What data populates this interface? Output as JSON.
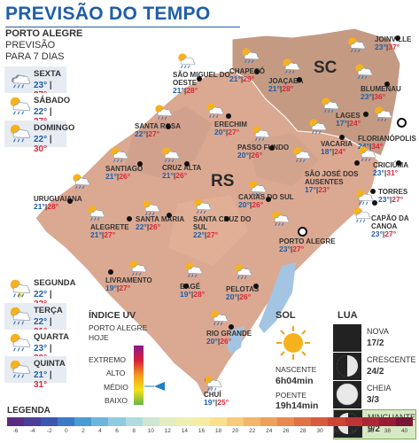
{
  "title": "PREVISÃO DO TEMPO",
  "header": {
    "city": "PORTO ALEGRE",
    "line1": "PREVISÃO",
    "line2": "PARA 7 DIAS"
  },
  "week": [
    {
      "day": "SEXTA",
      "min": "23°",
      "max": "27°",
      "icon": "storm-rain-icon"
    },
    {
      "day": "SÁBADO",
      "min": "22°",
      "max": "27°",
      "icon": "sun-cloud-rain-icon"
    },
    {
      "day": "DOMINGO",
      "min": "22°",
      "max": "30°",
      "icon": "sun-cloud-rain-icon"
    },
    {
      "day": "SEGUNDA",
      "min": "22°",
      "max": "32°",
      "icon": "sun-cloud-storm-icon"
    },
    {
      "day": "TERÇA",
      "min": "22°",
      "max": "31°",
      "icon": "sun-cloud-rain-icon"
    },
    {
      "day": "QUARTA",
      "min": "23°",
      "max": "30°",
      "icon": "sun-cloud-rain-icon"
    },
    {
      "day": "QUINTA",
      "min": "21°",
      "max": "31°",
      "icon": "sun-cloud-rain-icon"
    }
  ],
  "states": {
    "sc": "SC",
    "rs": "RS"
  },
  "cities": [
    {
      "name": "JOINVILLE",
      "min": "23°",
      "max": "37°"
    },
    {
      "name": "BLUMENAU",
      "min": "23°",
      "max": "36°"
    },
    {
      "name": "FLORIANÓPOLIS",
      "min": "24°",
      "max": "34°"
    },
    {
      "name": "LAGES",
      "min": "17°",
      "max": "24°"
    },
    {
      "name": "JOAÇABA",
      "min": "21°",
      "max": "28°"
    },
    {
      "name": "CHAPECÓ",
      "min": "21°",
      "max": "29°"
    },
    {
      "name": "SÃO MIGUEL DO OESTE",
      "min": "21°",
      "max": "28°"
    },
    {
      "name": "ERECHIM",
      "min": "20°",
      "max": "27°"
    },
    {
      "name": "VACARIA",
      "min": "18°",
      "max": "24°"
    },
    {
      "name": "SANTA ROSA",
      "min": "22°",
      "max": "27°"
    },
    {
      "name": "PASSO FUNDO",
      "min": "20°",
      "max": "26°"
    },
    {
      "name": "SÃO JOSÉ DOS AUSENTES",
      "min": "17°",
      "max": "23°"
    },
    {
      "name": "CRICIÚMA",
      "min": "23°",
      "max": "31°"
    },
    {
      "name": "SANTIAGO",
      "min": "21°",
      "max": "26°"
    },
    {
      "name": "CRUZ ALTA",
      "min": "21°",
      "max": "26°"
    },
    {
      "name": "TORRES",
      "min": "23°",
      "max": "27°"
    },
    {
      "name": "URUGUAIANA",
      "min": "21°",
      "max": "28°"
    },
    {
      "name": "CAXIAS DO SUL",
      "min": "20°",
      "max": "26°"
    },
    {
      "name": "CAPÃO DA CANOA",
      "min": "23°",
      "max": "27°"
    },
    {
      "name": "ALEGRETE",
      "min": "21°",
      "max": "27°"
    },
    {
      "name": "SANTA MARIA",
      "min": "22°",
      "max": "26°"
    },
    {
      "name": "SANTA CRUZ DO SUL",
      "min": "22°",
      "max": "27°"
    },
    {
      "name": "PORTO ALEGRE",
      "min": "23°",
      "max": "27°"
    },
    {
      "name": "LIVRAMENTO",
      "min": "19°",
      "max": "27°"
    },
    {
      "name": "BAGÉ",
      "min": "19°",
      "max": "28°"
    },
    {
      "name": "PELOTAS",
      "min": "20°",
      "max": "26°"
    },
    {
      "name": "RIO GRANDE",
      "min": "20°",
      "max": "26°"
    },
    {
      "name": "CHUÍ",
      "min": "19°",
      "max": "25°"
    }
  ],
  "uv": {
    "title": "ÍNDICE UV",
    "sub1": "PORTO ALEGRE",
    "sub2": "HOJE",
    "levels": [
      "EXTREMO",
      "ALTO",
      "MÉDIO",
      "BAIXO"
    ],
    "current": "MÉDIO"
  },
  "sun": {
    "title": "SOL",
    "rise_label": "NASCENTE",
    "rise": "6h04min",
    "set_label": "POENTE",
    "set": "19h14min"
  },
  "moon": {
    "title": "LUA",
    "phases": [
      {
        "name": "NOVA",
        "date": "17/2"
      },
      {
        "name": "CRESCENTE",
        "date": "24/2"
      },
      {
        "name": "CHEIA",
        "date": "3/3"
      },
      {
        "name": "MINGUANTE",
        "date": "9/2"
      }
    ]
  },
  "legend": {
    "title": "LEGENDA",
    "ticks": [
      "-6",
      "-4",
      "-2",
      "0",
      "2",
      "4",
      "6",
      "8",
      "10",
      "12",
      "14",
      "16",
      "18",
      "20",
      "22",
      "24",
      "26",
      "28",
      "30",
      "32",
      "34",
      "36",
      "38",
      "40"
    ],
    "colors": [
      "#5a2c82",
      "#4a3f98",
      "#3a58b0",
      "#3b7bc6",
      "#4b9bd4",
      "#6cb6dc",
      "#8fcbe0",
      "#b0dbe0",
      "#cfe6d2",
      "#e3edc1",
      "#eef0b2",
      "#f5eda3",
      "#f8e08f",
      "#f6cc7a",
      "#f3b66a",
      "#eea05c",
      "#e8894f",
      "#e07245",
      "#d75b3c",
      "#cc4636",
      "#bf3434",
      "#ad2634",
      "#961d35",
      "#7a1535"
    ]
  },
  "colors": {
    "title": "#1f5ea8",
    "min": "#1f5ea8",
    "max": "#d6283c",
    "map_rs": "#d9a98f",
    "map_sc": "#c59b82"
  }
}
